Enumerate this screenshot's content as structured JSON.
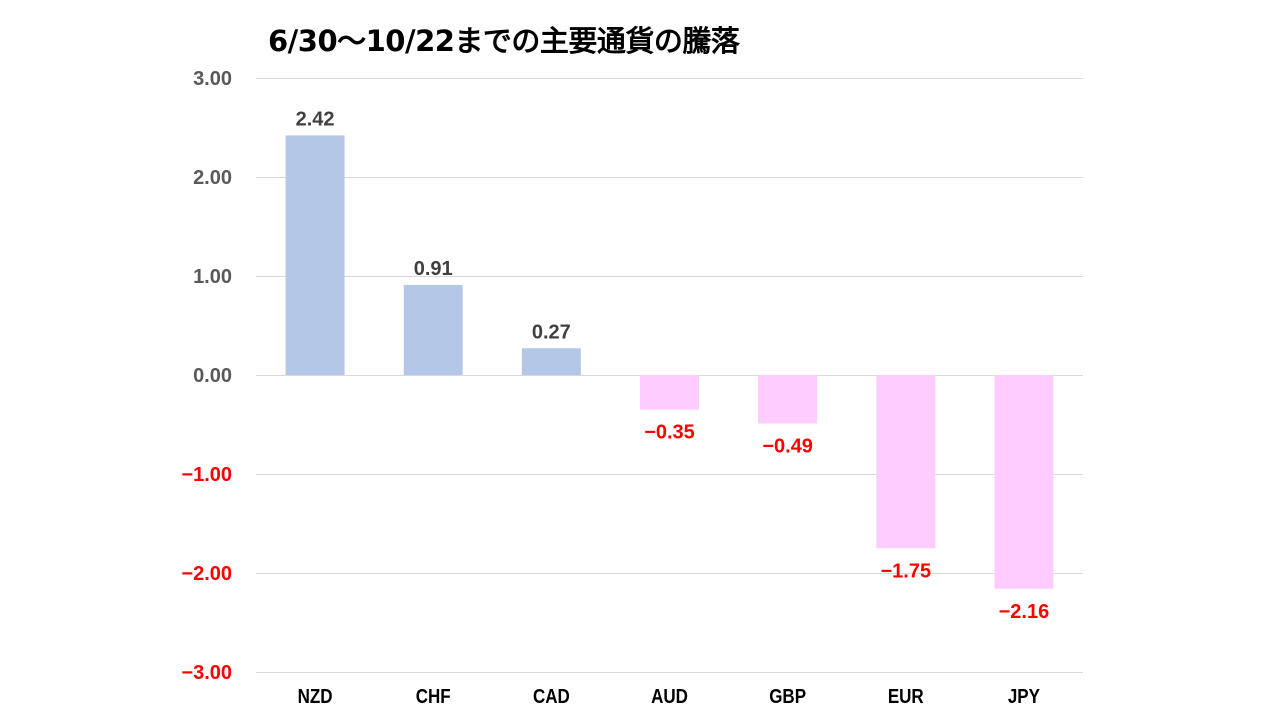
{
  "chart_data": {
    "type": "bar",
    "title": "6/30～10/22までの主要通貨の騰落",
    "categories": [
      "NZD",
      "CHF",
      "CAD",
      "AUD",
      "GBP",
      "EUR",
      "JPY"
    ],
    "values": [
      2.42,
      0.91,
      0.27,
      -0.35,
      -0.49,
      -1.75,
      -2.16
    ],
    "data_labels": [
      "2.42",
      "0.91",
      "0.27",
      "-0.35",
      "-0.49",
      "-1.75",
      "-2.16"
    ],
    "ylim": [
      -3,
      3
    ],
    "yticks": [
      3,
      2,
      1,
      0,
      -1,
      -2,
      -3
    ],
    "ytick_labels": [
      "3.00",
      "2.00",
      "1.00",
      "0.00",
      "-1.00",
      "-2.00",
      "-3.00"
    ],
    "xlabel": "",
    "ylabel": "",
    "grid": true,
    "legend": "none",
    "colors": {
      "positive_bar": "#b4c7e7",
      "negative_bar": "#ffccff",
      "positive_label": "#404040",
      "negative_label": "#ff0000",
      "positive_tick": "#595959",
      "negative_tick": "#ff0000",
      "gridline": "#d9d9d9"
    }
  }
}
